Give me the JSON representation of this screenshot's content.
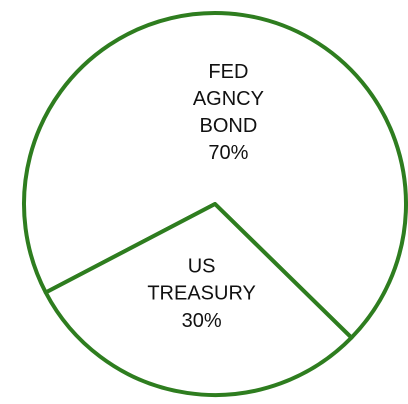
{
  "chart_data": {
    "type": "pie",
    "categories": [
      "FED AGNCY BOND",
      "US TREASURY"
    ],
    "values": [
      70,
      30
    ],
    "value_labels": [
      "70%",
      "30%"
    ],
    "color": "#ffffff",
    "edge_color": "#2e7d1f"
  }
}
